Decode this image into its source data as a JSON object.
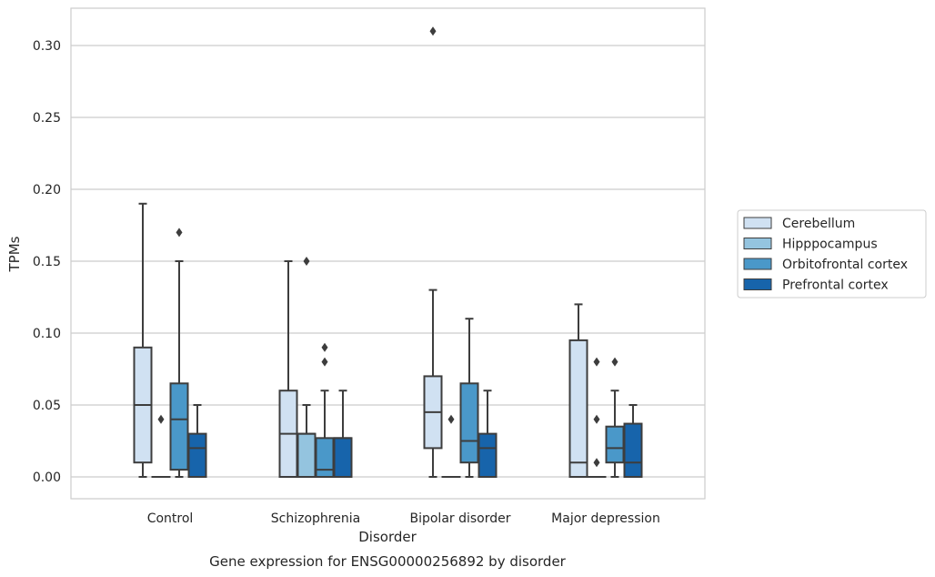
{
  "caption": "Gene expression for ENSG00000256892 by disorder",
  "chart_data": {
    "type": "box",
    "xlabel": "Disorder",
    "ylabel": "TPMs",
    "ylim": [
      -0.015,
      0.325
    ],
    "yticks": [
      "0.00",
      "0.05",
      "0.10",
      "0.15",
      "0.20",
      "0.25",
      "0.30"
    ],
    "ytick_values": [
      0,
      0.05,
      0.1,
      0.15,
      0.2,
      0.25,
      0.3
    ],
    "grid": "horizontal",
    "legend_position": "right",
    "categories": [
      "Control",
      "Schizophrenia",
      "Bipolar disorder",
      "Major depression"
    ],
    "series": [
      {
        "name": "Cerebellum",
        "color": "#d0e1f2",
        "boxes": [
          {
            "whislo": 0,
            "q1": 0.01,
            "med": 0.05,
            "q3": 0.09,
            "whishi": 0.19,
            "fliers": []
          },
          {
            "whislo": 0,
            "q1": 0,
            "med": 0.03,
            "q3": 0.06,
            "whishi": 0.15,
            "fliers": []
          },
          {
            "whislo": 0,
            "q1": 0.02,
            "med": 0.045,
            "q3": 0.07,
            "whishi": 0.13,
            "fliers": [
              0.31
            ]
          },
          {
            "whislo": 0,
            "q1": 0,
            "med": 0.01,
            "q3": 0.095,
            "whishi": 0.12,
            "fliers": []
          }
        ]
      },
      {
        "name": "Hipppocampus",
        "color": "#94c4df",
        "boxes": [
          {
            "whislo": 0,
            "q1": 0,
            "med": 0,
            "q3": 0,
            "whishi": 0,
            "fliers": [
              0.04
            ]
          },
          {
            "whislo": 0,
            "q1": 0,
            "med": 0.03,
            "q3": 0.03,
            "whishi": 0.05,
            "fliers": [
              0.15
            ]
          },
          {
            "whislo": 0,
            "q1": 0,
            "med": 0,
            "q3": 0,
            "whishi": 0,
            "fliers": [
              0.04
            ]
          },
          {
            "whislo": 0,
            "q1": 0,
            "med": 0,
            "q3": 0,
            "whishi": 0,
            "fliers": [
              0.08,
              0.04,
              0.01
            ]
          }
        ]
      },
      {
        "name": "Orbitofrontal cortex",
        "color": "#4a98c9",
        "boxes": [
          {
            "whislo": 0,
            "q1": 0.005,
            "med": 0.04,
            "q3": 0.065,
            "whishi": 0.15,
            "fliers": [
              0.17
            ]
          },
          {
            "whislo": 0,
            "q1": 0,
            "med": 0.005,
            "q3": 0.027,
            "whishi": 0.06,
            "fliers": [
              0.09,
              0.08
            ]
          },
          {
            "whislo": 0,
            "q1": 0.01,
            "med": 0.025,
            "q3": 0.065,
            "whishi": 0.11,
            "fliers": []
          },
          {
            "whislo": 0,
            "q1": 0.01,
            "med": 0.02,
            "q3": 0.035,
            "whishi": 0.06,
            "fliers": [
              0.08
            ]
          }
        ]
      },
      {
        "name": "Prefrontal cortex",
        "color": "#1764ab",
        "boxes": [
          {
            "whislo": 0,
            "q1": 0,
            "med": 0.02,
            "q3": 0.03,
            "whishi": 0.05,
            "fliers": []
          },
          {
            "whislo": 0,
            "q1": 0,
            "med": 0.027,
            "q3": 0.027,
            "whishi": 0.06,
            "fliers": []
          },
          {
            "whislo": 0,
            "q1": 0,
            "med": 0.02,
            "q3": 0.03,
            "whishi": 0.06,
            "fliers": []
          },
          {
            "whislo": 0,
            "q1": 0,
            "med": 0.01,
            "q3": 0.037,
            "whishi": 0.05,
            "fliers": []
          }
        ]
      }
    ]
  }
}
